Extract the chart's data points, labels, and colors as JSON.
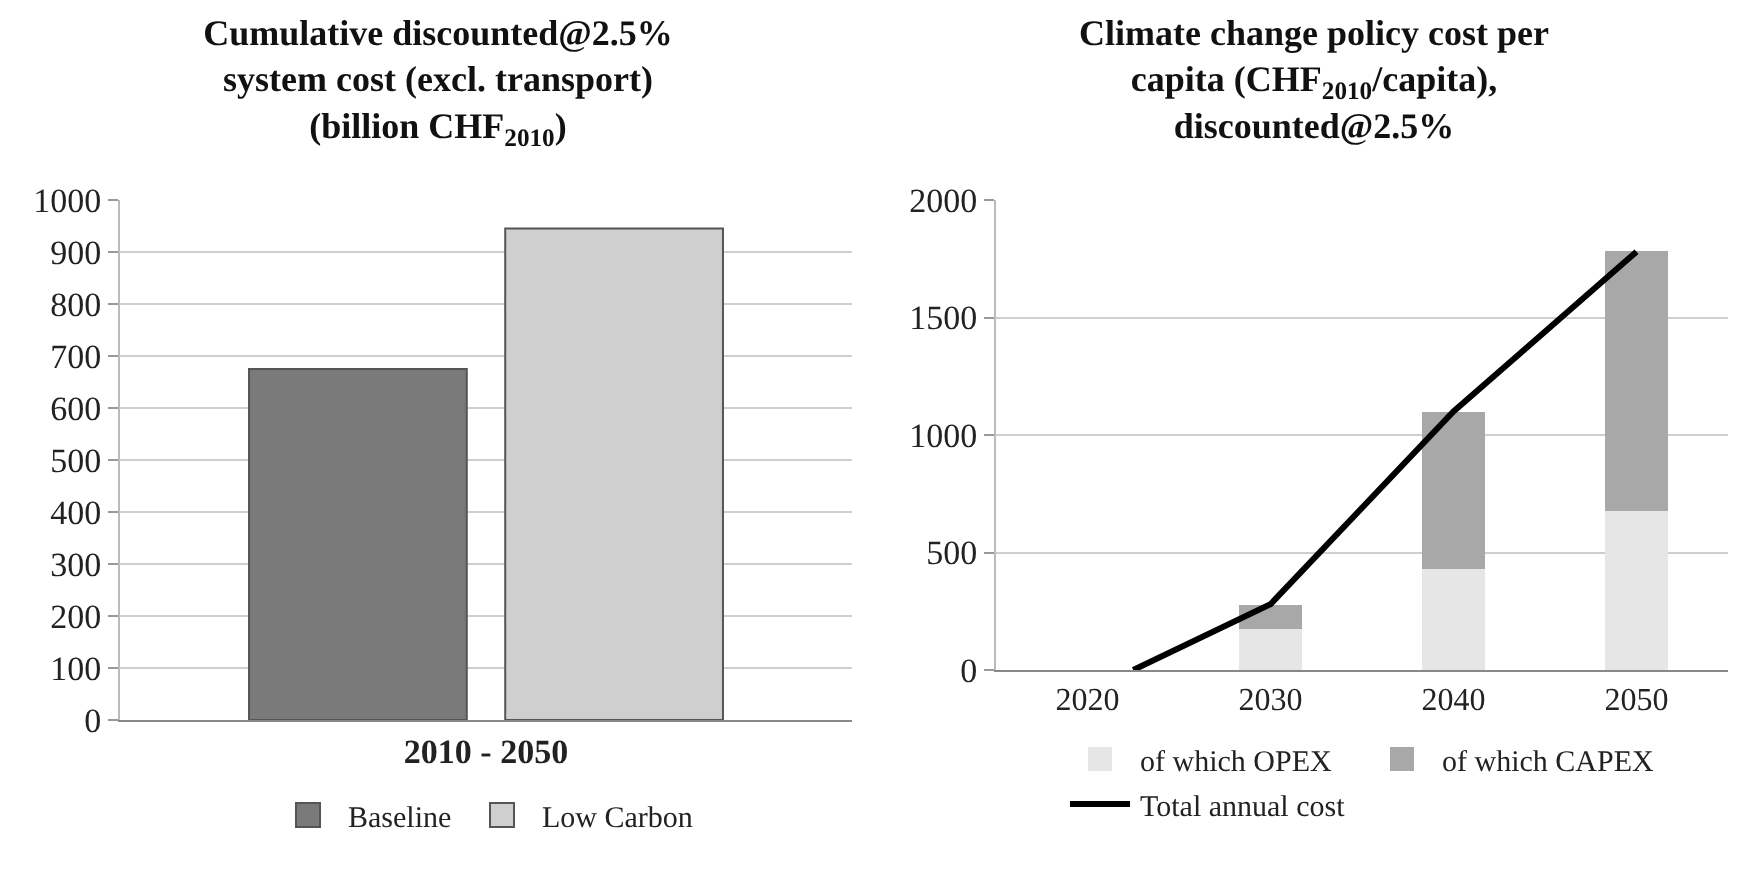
{
  "chart_data": [
    {
      "type": "bar",
      "title": "Cumulative discounted@2.5% system cost (excl. transport) (billion CHF$_{2010}$)",
      "categories": [
        "2010 - 2050"
      ],
      "series": [
        {
          "name": "Baseline",
          "color": "#7a7a7a",
          "values": [
            675
          ]
        },
        {
          "name": "Low Carbon",
          "color": "#cfcfcf",
          "values": [
            945
          ]
        }
      ],
      "ylim": [
        0,
        1000
      ],
      "yticks": [
        0,
        100,
        200,
        300,
        400,
        500,
        600,
        700,
        800,
        900,
        1000
      ],
      "grid": "y",
      "legend": "bottom"
    },
    {
      "type": "bar",
      "title": "Climate change policy cost per capita (CHF$_{2010}$/capita), discounted@2.5%",
      "stacked": true,
      "series": [
        {
          "name": "of which OPEX",
          "color": "#e6e6e6",
          "x": [
            2030,
            2040,
            2050
          ],
          "values": [
            175,
            430,
            675
          ]
        },
        {
          "name": "of which CAPEX",
          "color": "#a8a8a8",
          "x": [
            2030,
            2040,
            2050
          ],
          "values": [
            100,
            670,
            1110
          ]
        },
        {
          "name": "Total annual cost",
          "type": "line",
          "color": "#000000",
          "x": [
            2022.5,
            2030,
            2040,
            2050
          ],
          "values": [
            0,
            280,
            1100,
            1780
          ]
        }
      ],
      "xlim": [
        2015,
        2055
      ],
      "xticks": [
        2020,
        2030,
        2040,
        2050
      ],
      "ylim": [
        0,
        2000
      ],
      "yticks": [
        0,
        500,
        1000,
        1500,
        2000
      ],
      "grid": "y",
      "legend": "bottom",
      "marker": "none",
      "line_style": "solid"
    }
  ]
}
